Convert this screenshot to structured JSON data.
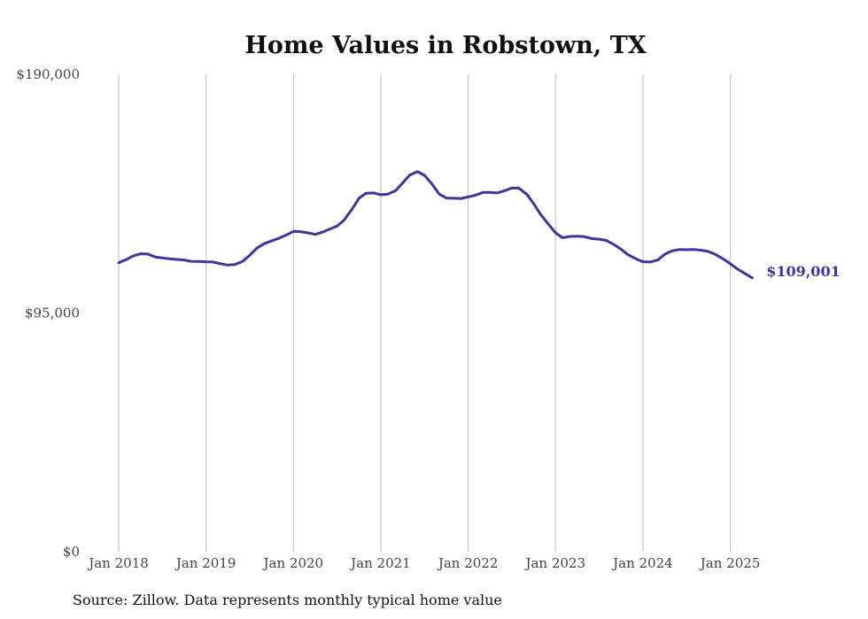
{
  "chart_data": {
    "type": "line",
    "title": "Home Values in Robstown, TX",
    "xlabel": "",
    "ylabel": "",
    "ylim": [
      0,
      190000
    ],
    "y_ticks": [
      {
        "value": 0,
        "label": "$0"
      },
      {
        "value": 95000,
        "label": "$95,000"
      },
      {
        "value": 190000,
        "label": "$190,000"
      }
    ],
    "x_ticks": [
      {
        "value": 2018,
        "label": "Jan 2018"
      },
      {
        "value": 2019,
        "label": "Jan 2019"
      },
      {
        "value": 2020,
        "label": "Jan 2020"
      },
      {
        "value": 2021,
        "label": "Jan 2021"
      },
      {
        "value": 2022,
        "label": "Jan 2022"
      },
      {
        "value": 2023,
        "label": "Jan 2023"
      },
      {
        "value": 2024,
        "label": "Jan 2024"
      },
      {
        "value": 2025,
        "label": "Jan 2025"
      }
    ],
    "xlim": [
      2017.9,
      2026.5
    ],
    "grid": "vertical",
    "series": [
      {
        "name": "Typical home value",
        "color": "#3d3799",
        "end_label": "$109,001",
        "points": [
          [
            2018.0,
            115000
          ],
          [
            2018.08,
            116200
          ],
          [
            2018.17,
            117800
          ],
          [
            2018.25,
            118600
          ],
          [
            2018.33,
            118500
          ],
          [
            2018.42,
            117300
          ],
          [
            2018.58,
            116600
          ],
          [
            2018.75,
            116100
          ],
          [
            2018.83,
            115600
          ],
          [
            2018.92,
            115500
          ],
          [
            2019.0,
            115400
          ],
          [
            2019.08,
            115300
          ],
          [
            2019.17,
            114600
          ],
          [
            2019.25,
            114100
          ],
          [
            2019.33,
            114300
          ],
          [
            2019.42,
            115600
          ],
          [
            2019.5,
            118000
          ],
          [
            2019.58,
            120800
          ],
          [
            2019.67,
            122700
          ],
          [
            2019.75,
            123700
          ],
          [
            2019.83,
            124700
          ],
          [
            2019.92,
            126100
          ],
          [
            2020.0,
            127500
          ],
          [
            2020.08,
            127400
          ],
          [
            2020.17,
            126900
          ],
          [
            2020.25,
            126300
          ],
          [
            2020.33,
            127200
          ],
          [
            2020.42,
            128500
          ],
          [
            2020.5,
            129600
          ],
          [
            2020.58,
            132000
          ],
          [
            2020.67,
            136300
          ],
          [
            2020.75,
            140700
          ],
          [
            2020.83,
            142700
          ],
          [
            2020.92,
            142800
          ],
          [
            2021.0,
            142100
          ],
          [
            2021.08,
            142300
          ],
          [
            2021.17,
            143700
          ],
          [
            2021.25,
            146800
          ],
          [
            2021.33,
            149900
          ],
          [
            2021.42,
            151300
          ],
          [
            2021.5,
            149800
          ],
          [
            2021.58,
            146600
          ],
          [
            2021.67,
            142300
          ],
          [
            2021.75,
            140800
          ],
          [
            2021.83,
            140700
          ],
          [
            2021.92,
            140600
          ],
          [
            2022.0,
            141200
          ],
          [
            2022.08,
            141900
          ],
          [
            2022.17,
            143000
          ],
          [
            2022.25,
            143000
          ],
          [
            2022.33,
            142800
          ],
          [
            2022.42,
            143700
          ],
          [
            2022.5,
            144800
          ],
          [
            2022.58,
            144700
          ],
          [
            2022.67,
            142300
          ],
          [
            2022.75,
            138500
          ],
          [
            2022.83,
            134200
          ],
          [
            2022.92,
            130300
          ],
          [
            2023.0,
            126900
          ],
          [
            2023.08,
            125000
          ],
          [
            2023.17,
            125500
          ],
          [
            2023.25,
            125600
          ],
          [
            2023.33,
            125400
          ],
          [
            2023.42,
            124600
          ],
          [
            2023.5,
            124400
          ],
          [
            2023.58,
            123900
          ],
          [
            2023.67,
            122200
          ],
          [
            2023.75,
            120400
          ],
          [
            2023.83,
            118200
          ],
          [
            2023.92,
            116600
          ],
          [
            2024.0,
            115400
          ],
          [
            2024.08,
            115300
          ],
          [
            2024.17,
            116100
          ],
          [
            2024.25,
            118400
          ],
          [
            2024.33,
            119700
          ],
          [
            2024.42,
            120300
          ],
          [
            2024.5,
            120200
          ],
          [
            2024.58,
            120300
          ],
          [
            2024.67,
            120000
          ],
          [
            2024.75,
            119500
          ],
          [
            2024.83,
            118300
          ],
          [
            2024.92,
            116500
          ],
          [
            2025.0,
            114600
          ],
          [
            2025.08,
            112600
          ],
          [
            2025.17,
            110700
          ],
          [
            2025.25,
            109001
          ]
        ]
      }
    ]
  },
  "source": "Source: Zillow. Data represents monthly typical home value"
}
